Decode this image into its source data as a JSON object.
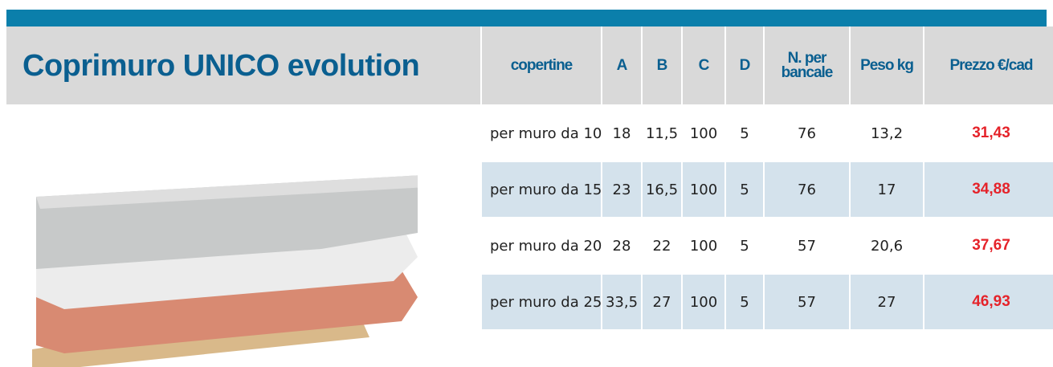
{
  "header": {
    "title": "Coprimuro UNICO evolution"
  },
  "table": {
    "columns": [
      "copertine",
      "A",
      "B",
      "C",
      "D",
      "N. per bancale",
      "Peso kg",
      "Prezzo €/cad"
    ],
    "rows": [
      [
        "per muro da 10",
        "18",
        "11,5",
        "100",
        "5",
        "76",
        "13,2",
        "31,43"
      ],
      [
        "per muro da 15",
        "23",
        "16,5",
        "100",
        "5",
        "76",
        "17",
        "34,88"
      ],
      [
        "per muro da 20",
        "28",
        "22",
        "100",
        "5",
        "57",
        "20,6",
        "37,67"
      ],
      [
        "per muro da 25",
        "33,5",
        "27",
        "100",
        "5",
        "57",
        "27",
        "46,93"
      ]
    ]
  }
}
